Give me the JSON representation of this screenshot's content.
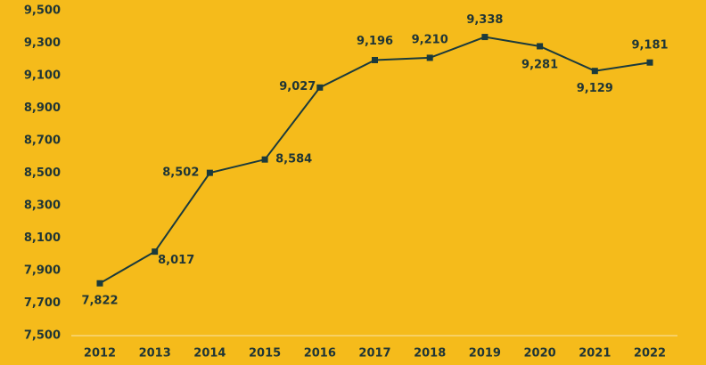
{
  "chart_data": {
    "type": "line",
    "categories": [
      "2012",
      "2013",
      "2014",
      "2015",
      "2016",
      "2017",
      "2018",
      "2019",
      "2020",
      "2021",
      "2022"
    ],
    "series": [
      {
        "color": "#1b3a3c",
        "values": [
          7822,
          8017,
          8502,
          8584,
          9027,
          9196,
          9210,
          9338,
          9281,
          9129,
          9181
        ],
        "value_labels": [
          "7,822",
          "8,017",
          "8,502",
          "8,584",
          "9,027",
          "9,196",
          "9,210",
          "9,338",
          "9,281",
          "9,129",
          "9,181"
        ]
      }
    ],
    "ylim": [
      7500,
      9500
    ],
    "yticks": [
      {
        "value": 7500,
        "label": "7,500"
      },
      {
        "value": 7700,
        "label": "7,700"
      },
      {
        "value": 7900,
        "label": "7,900"
      },
      {
        "value": 8100,
        "label": "8,100"
      },
      {
        "value": 8300,
        "label": "8,300"
      },
      {
        "value": 8500,
        "label": "8,500"
      },
      {
        "value": 8700,
        "label": "8,700"
      },
      {
        "value": 8900,
        "label": "8,900"
      },
      {
        "value": 9100,
        "label": "9,100"
      },
      {
        "value": 9300,
        "label": "9,300"
      },
      {
        "value": 9500,
        "label": "9,500"
      }
    ],
    "grid": false
  }
}
